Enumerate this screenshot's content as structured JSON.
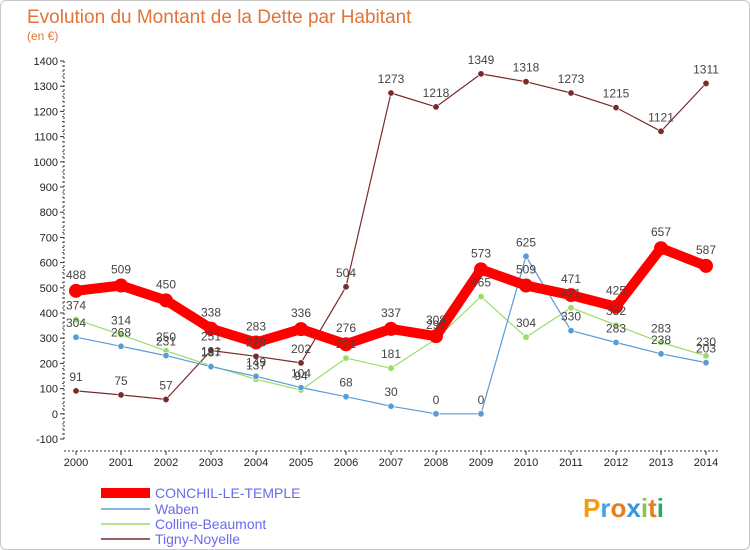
{
  "chart_data": {
    "type": "line",
    "title": "Evolution du Montant de la Dette par Habitant",
    "subtitle": "(en €)",
    "xlabel": "",
    "ylabel": "",
    "ylim": [
      -100,
      1400
    ],
    "yticks": [
      -100,
      0,
      100,
      200,
      300,
      400,
      500,
      600,
      700,
      800,
      900,
      1000,
      1100,
      1200,
      1300,
      1400
    ],
    "categories": [
      "2000",
      "2001",
      "2002",
      "2003",
      "2004",
      "2005",
      "2006",
      "2007",
      "2008",
      "2009",
      "2010",
      "2011",
      "2012",
      "2013",
      "2014"
    ],
    "grid": false,
    "legend_position": "bottom-left",
    "series": [
      {
        "name": "CONCHIL-LE-TEMPLE",
        "color": "#ff0000",
        "values": [
          488,
          509,
          450,
          338,
          283,
          336,
          276,
          337,
          308,
          573,
          509,
          471,
          425,
          657,
          587
        ],
        "labels": [
          "488",
          "509",
          "450",
          "338",
          "283",
          "336",
          "276",
          "337",
          "308",
          "573",
          "509",
          "471",
          "425",
          "657",
          "587"
        ]
      },
      {
        "name": "Waben",
        "color": "#5b9bd5",
        "values": [
          304,
          268,
          231,
          187,
          149,
          104,
          68,
          30,
          0,
          0,
          625,
          330,
          283,
          238,
          203
        ],
        "labels": [
          "304",
          "268",
          "231",
          "187",
          "149",
          "104",
          "68",
          "30",
          "0",
          "0",
          "625",
          "330",
          "283",
          "238",
          "203"
        ]
      },
      {
        "name": "Colline-Beaumont",
        "color": "#99dd66",
        "values": [
          374,
          314,
          250,
          191,
          137,
          94,
          221,
          181,
          297,
          465,
          304,
          421,
          352,
          283,
          230
        ],
        "labels": [
          "374",
          "314",
          "250",
          "191",
          "137",
          "94",
          "221",
          "181",
          "297",
          "465",
          "304",
          "421",
          "352",
          "283",
          "230"
        ]
      },
      {
        "name": "Tigny-Noyelle",
        "color": "#7a2a2a",
        "values": [
          91,
          75,
          57,
          251,
          228,
          202,
          504,
          1273,
          1218,
          1349,
          1318,
          1273,
          1215,
          1121,
          1311
        ],
        "labels": [
          "91",
          "75",
          "57",
          "251",
          "228",
          "202",
          "504",
          "1273",
          "1218",
          "1349",
          "1318",
          "1273",
          "1215",
          "1121",
          "1311"
        ]
      }
    ]
  },
  "branding": {
    "logo_text": "Proxiti"
  }
}
